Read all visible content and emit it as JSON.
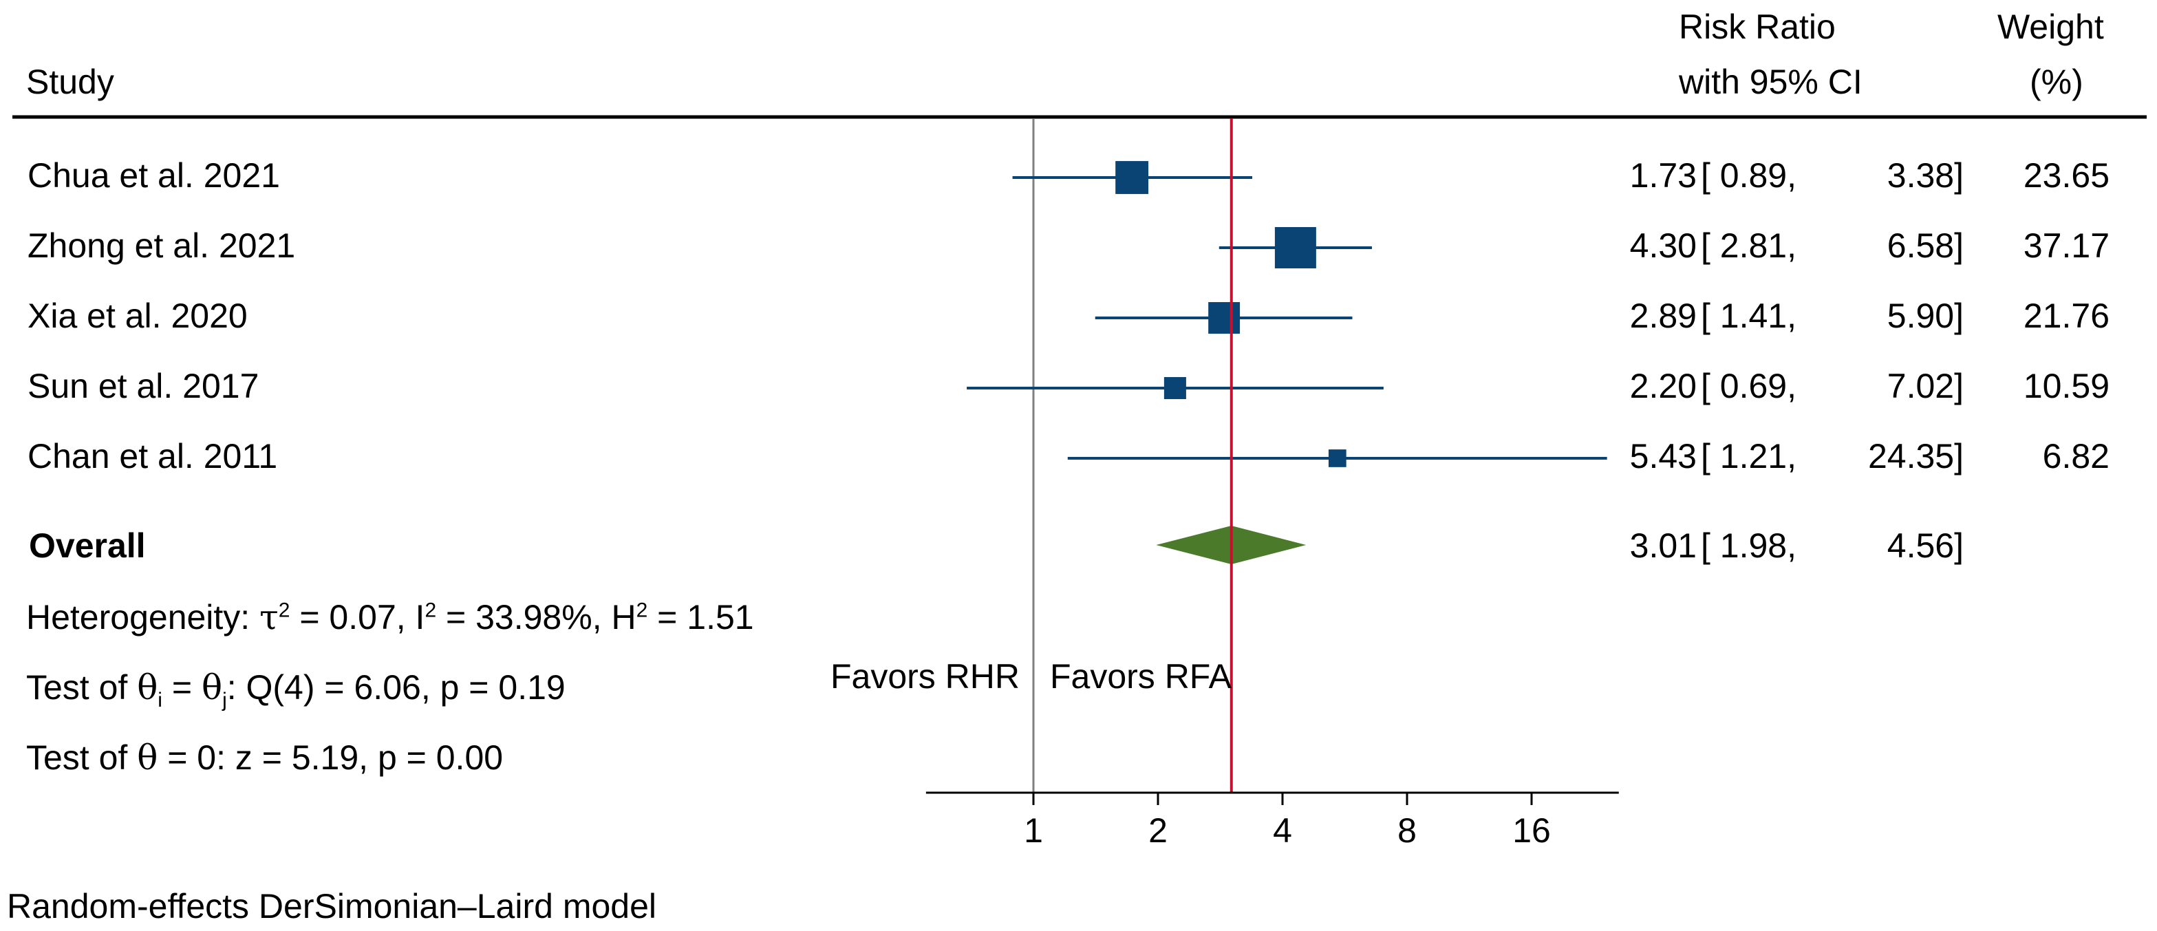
{
  "header": {
    "study": "Study",
    "rr_line1": "Risk Ratio",
    "rr_line2": "with 95% CI",
    "weight_line1": "Weight",
    "weight_line2": "(%)"
  },
  "chart_data": {
    "type": "forest",
    "scale": "log2",
    "x_ticks": [
      1,
      2,
      4,
      8,
      16
    ],
    "x_tick_labels": [
      "1",
      "2",
      "4",
      "8",
      "16"
    ],
    "xlim": [
      0.55,
      26
    ],
    "null_line": 1,
    "pooled_line": 3.01,
    "studies": [
      {
        "name": "Chua et al. 2021",
        "rr": 1.73,
        "lo": 0.89,
        "hi": 3.38,
        "weight": 23.65,
        "rr_text": "1.73",
        "ci_lo_text": "[ 0.89,",
        "ci_hi_text": "3.38]",
        "weight_text": "23.65"
      },
      {
        "name": "Zhong et al. 2021",
        "rr": 4.3,
        "lo": 2.81,
        "hi": 6.58,
        "weight": 37.17,
        "rr_text": "4.30",
        "ci_lo_text": "[ 2.81,",
        "ci_hi_text": "6.58]",
        "weight_text": "37.17"
      },
      {
        "name": "Xia et al. 2020",
        "rr": 2.89,
        "lo": 1.41,
        "hi": 5.9,
        "weight": 21.76,
        "rr_text": "2.89",
        "ci_lo_text": "[ 1.41,",
        "ci_hi_text": "5.90]",
        "weight_text": "21.76"
      },
      {
        "name": "Sun et al. 2017",
        "rr": 2.2,
        "lo": 0.69,
        "hi": 7.02,
        "weight": 10.59,
        "rr_text": "2.20",
        "ci_lo_text": "[ 0.69,",
        "ci_hi_text": "7.02]",
        "weight_text": "10.59"
      },
      {
        "name": "Chan et al. 2011",
        "rr": 5.43,
        "lo": 1.21,
        "hi": 24.35,
        "weight": 6.82,
        "rr_text": "5.43",
        "ci_lo_text": "[ 1.21,",
        "ci_hi_text": "24.35]",
        "weight_text": "6.82"
      }
    ],
    "overall": {
      "name": "Overall",
      "rr": 3.01,
      "lo": 1.98,
      "hi": 4.56,
      "rr_text": "3.01",
      "ci_lo_text": "[ 1.98,",
      "ci_hi_text": "4.56]"
    },
    "heterogeneity": {
      "prefix": "Heterogeneity: ",
      "tau_sym": "τ",
      "tau_rest": " = 0.07, I",
      "i2_rest": " = 33.98%, H",
      "h2_rest": " = 1.51",
      "sup": "2"
    },
    "test_theta_ij": {
      "prefix": "Test of ",
      "theta": "θ",
      "sub_i": "i",
      "eq": " = ",
      "sub_j": "j",
      "rest": ": Q(4) = 6.06, p = 0.19"
    },
    "test_theta_0": {
      "prefix": "Test of ",
      "theta": "θ",
      "rest": " = 0: z = 5.19, p = 0.00"
    },
    "favors_left": "Favors RHR",
    "favors_right": "Favors RFA",
    "footnote": "Random-effects DerSimonian–Laird model",
    "colors": {
      "marker": "#0a4474",
      "diamond": "#4a7a2a",
      "pooled_line": "#c8102e",
      "null_line": "#808080",
      "axis": "#000000"
    }
  }
}
